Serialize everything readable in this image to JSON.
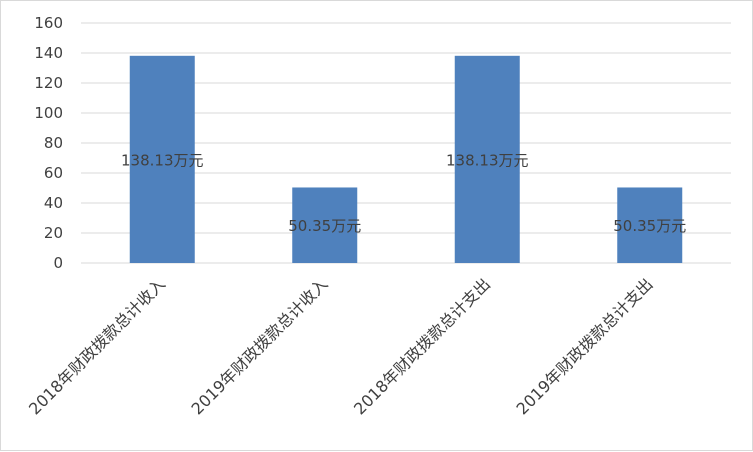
{
  "chart_data": {
    "type": "bar",
    "categories": [
      "2018年财政拨款总计收入",
      "2019年财政拨款总计收入",
      "2018年财政拨款总计支出",
      "2019年财政拨款总计支出"
    ],
    "values": [
      138.13,
      50.35,
      138.13,
      50.35
    ],
    "data_labels": [
      "138.13万元",
      "50.35万元",
      "138.13万元",
      "50.35万元"
    ],
    "yticks": [
      "0",
      "20",
      "40",
      "60",
      "80",
      "100",
      "120",
      "140",
      "160"
    ],
    "ylim": [
      0,
      160
    ],
    "grid": true,
    "legend": "none",
    "bar_color": "#4f81bd"
  }
}
